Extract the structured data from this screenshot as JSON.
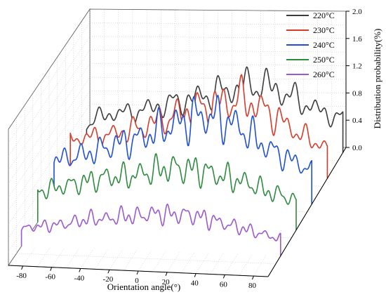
{
  "chart_data": {
    "type": "line",
    "subtype": "3d-waterfall",
    "title": "",
    "xlabel": "Orientation angle(°)",
    "zlabel": "Distribution probability(%)",
    "xlim": [
      -90,
      90
    ],
    "zlim": [
      0,
      2.0
    ],
    "x_ticks": [
      -80,
      -60,
      -40,
      -20,
      0,
      20,
      40,
      60,
      80
    ],
    "z_ticks": [
      0.0,
      0.4,
      0.8,
      1.2,
      1.6,
      2.0
    ],
    "x_tick_labels": [
      "-80",
      "-60",
      "-40",
      "-20",
      "0",
      "20",
      "40",
      "60",
      "80"
    ],
    "z_tick_labels": [
      "0.0",
      "0.4",
      "0.8",
      "1.2",
      "1.6",
      "2.0"
    ],
    "grid": true,
    "legend_position": "top-right",
    "x_knots": [
      -90,
      -80,
      -70,
      -60,
      -50,
      -40,
      -30,
      -20,
      -10,
      0,
      10,
      20,
      30,
      40,
      50,
      60,
      70,
      80,
      90
    ],
    "series": [
      {
        "name": "220°C",
        "color": "#3c3c3c",
        "values": [
          0.38,
          0.5,
          0.55,
          0.55,
          0.6,
          0.65,
          0.7,
          0.75,
          0.8,
          0.86,
          0.9,
          0.95,
          1.0,
          0.95,
          0.85,
          0.75,
          0.65,
          0.55,
          0.5
        ]
      },
      {
        "name": "230°C",
        "color": "#d83b2a",
        "values": [
          0.5,
          0.55,
          0.55,
          0.6,
          0.65,
          0.7,
          0.8,
          0.85,
          0.95,
          1.0,
          1.05,
          1.1,
          1.15,
          1.05,
          0.95,
          0.8,
          0.65,
          0.55,
          0.45
        ]
      },
      {
        "name": "240°C",
        "color": "#1f4fd8",
        "values": [
          0.55,
          0.6,
          0.65,
          0.7,
          0.8,
          0.85,
          0.9,
          1.0,
          1.1,
          1.15,
          1.25,
          1.25,
          1.2,
          1.1,
          0.95,
          0.8,
          0.7,
          0.6,
          0.5
        ]
      },
      {
        "name": "250°C",
        "color": "#2e8b3e",
        "values": [
          0.45,
          0.5,
          0.55,
          0.6,
          0.65,
          0.7,
          0.7,
          0.75,
          0.8,
          0.85,
          0.85,
          0.85,
          0.8,
          0.75,
          0.7,
          0.65,
          0.55,
          0.5,
          0.45
        ]
      },
      {
        "name": "260°C",
        "color": "#9b59d0",
        "values": [
          0.25,
          0.3,
          0.32,
          0.35,
          0.4,
          0.45,
          0.45,
          0.5,
          0.5,
          0.55,
          0.55,
          0.55,
          0.55,
          0.5,
          0.45,
          0.4,
          0.35,
          0.3,
          0.25
        ]
      }
    ]
  }
}
